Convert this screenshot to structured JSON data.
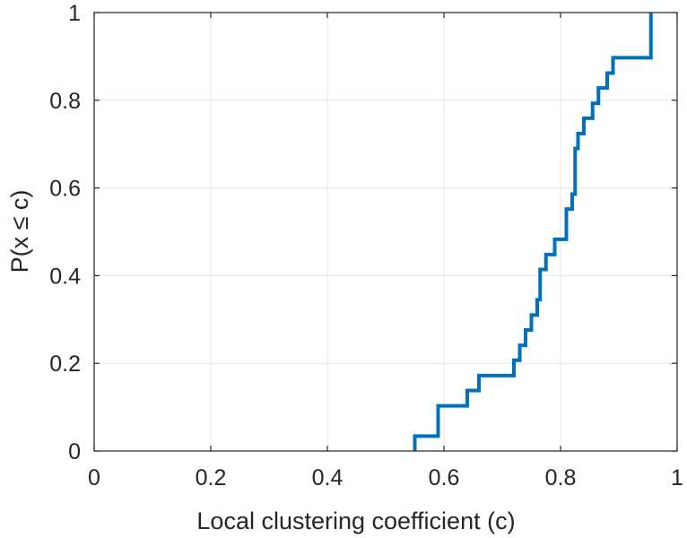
{
  "chart_data": {
    "type": "line",
    "style": "stairs (empirical CDF)",
    "title": "",
    "xlabel": "Local clustering coefficient (c)",
    "ylabel": "P(x ≤ c)",
    "xlim": [
      0,
      1
    ],
    "ylim": [
      0,
      1
    ],
    "grid": true,
    "legend": "none",
    "x_ticks": [
      0,
      0.2,
      0.4,
      0.6,
      0.8,
      1
    ],
    "x_tick_labels": [
      "0",
      "0.2",
      "0.4",
      "0.6",
      "0.8",
      "1"
    ],
    "y_ticks": [
      0,
      0.2,
      0.4,
      0.6,
      0.8,
      1
    ],
    "y_tick_labels": [
      "0",
      "0.2",
      "0.4",
      "0.6",
      "0.8",
      "1"
    ],
    "colors": {
      "line": "#0072BD",
      "grid": "#e6e6e6",
      "axes": "#262626"
    },
    "series": [
      {
        "x": [
          0.55,
          0.59,
          0.64,
          0.66,
          0.72,
          0.73,
          0.74,
          0.75,
          0.76,
          0.765,
          0.775,
          0.79,
          0.81,
          0.82,
          0.825,
          0.83,
          0.84,
          0.855,
          0.865,
          0.88,
          0.89,
          0.955,
          0.955
        ],
        "y": [
          0.034,
          0.103,
          0.138,
          0.172,
          0.207,
          0.241,
          0.276,
          0.31,
          0.345,
          0.414,
          0.448,
          0.483,
          0.552,
          0.586,
          0.69,
          0.724,
          0.759,
          0.793,
          0.828,
          0.862,
          0.897,
          0.966,
          1.0
        ]
      }
    ]
  }
}
